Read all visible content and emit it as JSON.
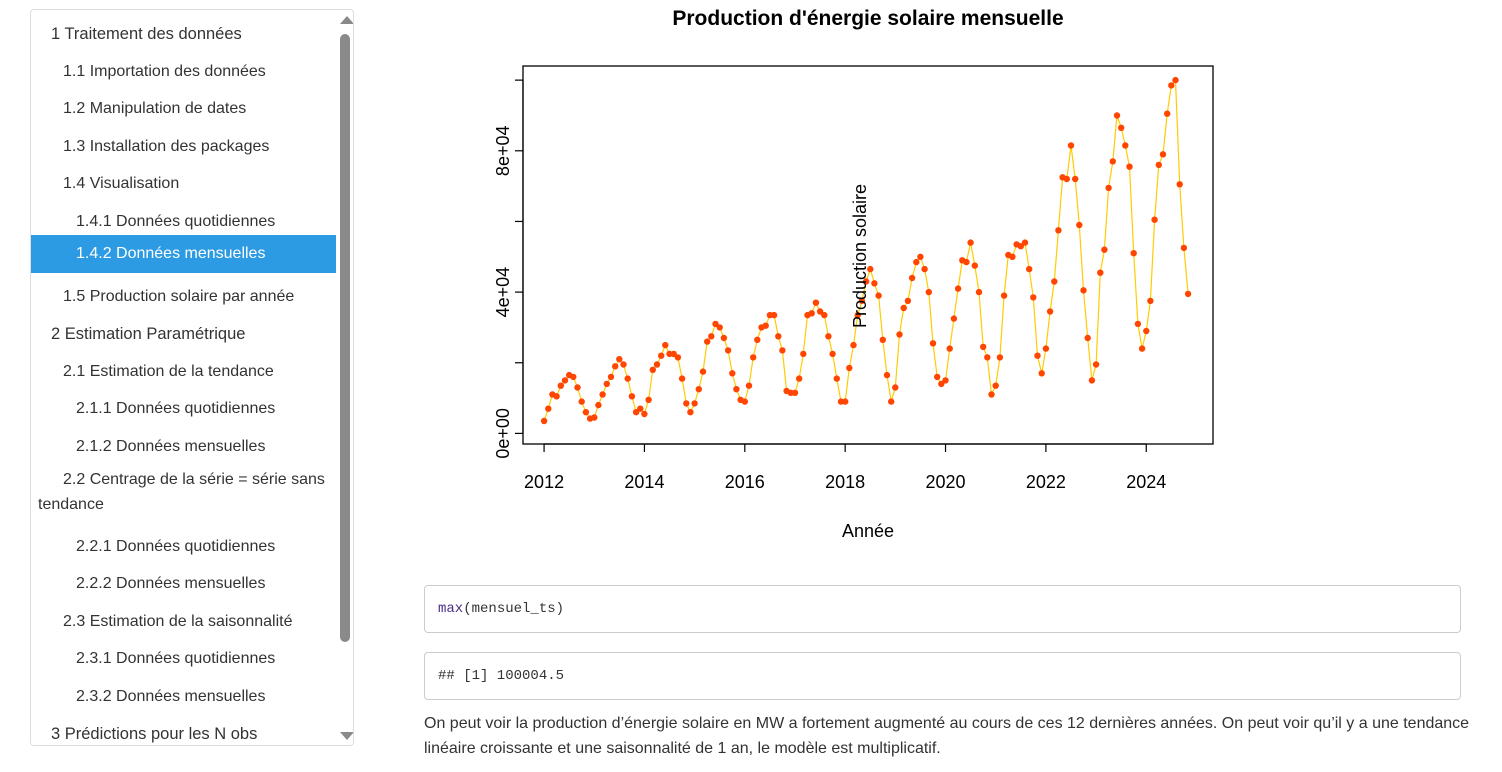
{
  "toc": {
    "items": [
      {
        "label": "1 Traitement des données",
        "level": 1,
        "active": false
      },
      {
        "label": "1.1 Importation des données",
        "level": 2,
        "active": false
      },
      {
        "label": "1.2 Manipulation de dates",
        "level": 2,
        "active": false
      },
      {
        "label": "1.3 Installation des packages",
        "level": 2,
        "active": false
      },
      {
        "label": "1.4 Visualisation",
        "level": 2,
        "active": false
      },
      {
        "label": "1.4.1 Données quotidiennes",
        "level": 3,
        "active": false
      },
      {
        "label": "1.4.2 Données mensuelles",
        "level": 3,
        "active": true
      },
      {
        "label": "1.5 Production solaire par année",
        "level": 2,
        "active": false
      },
      {
        "label": "2 Estimation Paramétrique",
        "level": 1,
        "active": false
      },
      {
        "label": "2.1 Estimation de la tendance",
        "level": 2,
        "active": false
      },
      {
        "label": "2.1.1 Données quotidiennes",
        "level": 3,
        "active": false
      },
      {
        "label": "2.1.2 Données mensuelles",
        "level": 3,
        "active": false
      },
      {
        "label": "2.2 Centrage de la série = série sans tendance",
        "level": 2,
        "active": false
      },
      {
        "label": "2.2.1 Données quotidiennes",
        "level": 3,
        "active": false
      },
      {
        "label": "2.2.2 Données mensuelles",
        "level": 3,
        "active": false
      },
      {
        "label": "2.3 Estimation de la saisonnalité",
        "level": 2,
        "active": false
      },
      {
        "label": "2.3.1 Données quotidiennes",
        "level": 3,
        "active": false
      },
      {
        "label": "2.3.2 Données mensuelles",
        "level": 3,
        "active": false
      },
      {
        "label": "3 Prédictions pour les N obs",
        "level": 1,
        "active": false
      }
    ]
  },
  "chart_data": {
    "type": "line",
    "title": "Production d'énergie solaire mensuelle",
    "xlabel": "Année",
    "ylabel": "Production solaire",
    "xlim": [
      2011.58,
      2025.33
    ],
    "ylim": [
      -3000,
      104000
    ],
    "x_ticks": [
      2012,
      2014,
      2016,
      2018,
      2020,
      2022,
      2024
    ],
    "y_ticks": [
      0,
      20000,
      40000,
      60000,
      80000,
      100000
    ],
    "y_tick_labels": [
      "0e+00",
      "",
      "4e+04",
      "",
      "8e+04",
      ""
    ],
    "line_color": "#ffcc00",
    "point_color": "#ff4500",
    "start": "2012-01",
    "frequency": "monthly",
    "values": [
      3500,
      7000,
      11000,
      10500,
      13500,
      15000,
      16500,
      16000,
      13000,
      9000,
      6000,
      4200,
      4500,
      8000,
      11000,
      14000,
      16000,
      19000,
      21000,
      19500,
      15500,
      10500,
      6000,
      7000,
      5500,
      9500,
      18000,
      19500,
      22000,
      25000,
      22500,
      22500,
      21500,
      15500,
      8500,
      6000,
      8500,
      12500,
      17500,
      26000,
      27500,
      31000,
      30000,
      27000,
      23500,
      17000,
      12500,
      9500,
      9000,
      13500,
      21500,
      26500,
      30000,
      30500,
      33500,
      33500,
      27500,
      23500,
      12000,
      11500,
      11500,
      15500,
      22500,
      33500,
      34000,
      37000,
      34500,
      33500,
      27500,
      22500,
      15500,
      9000,
      9000,
      18500,
      25000,
      33500,
      37500,
      43000,
      46500,
      42500,
      39000,
      26500,
      16500,
      9000,
      13000,
      28000,
      35500,
      37500,
      44000,
      48500,
      50000,
      46500,
      40000,
      25500,
      16000,
      14000,
      15000,
      24000,
      32500,
      41000,
      49000,
      48500,
      54000,
      47500,
      40000,
      24500,
      21500,
      11000,
      13500,
      21500,
      39000,
      50500,
      50000,
      53500,
      53000,
      54000,
      46500,
      38500,
      22000,
      17000,
      24000,
      34500,
      43000,
      57500,
      72500,
      72000,
      81500,
      72000,
      59000,
      40500,
      27000,
      15000,
      19500,
      45500,
      52000,
      69500,
      77000,
      90000,
      86500,
      81500,
      75500,
      51000,
      31000,
      24000,
      29000,
      37500,
      60500,
      76000,
      79000,
      90500,
      98500,
      100004.5,
      70500,
      52500,
      39500
    ]
  },
  "code": {
    "function": "max",
    "args": "(mensuel_ts)",
    "output": "## [1] 100004.5"
  },
  "prose": "On peut voir la production d’énergie solaire en MW a fortement augmenté au cours de ces 12 dernières années. On peut voir qu’il y a une tendance linéaire croissante et une saisonnalité de 1 an, le modèle est multiplicatif."
}
